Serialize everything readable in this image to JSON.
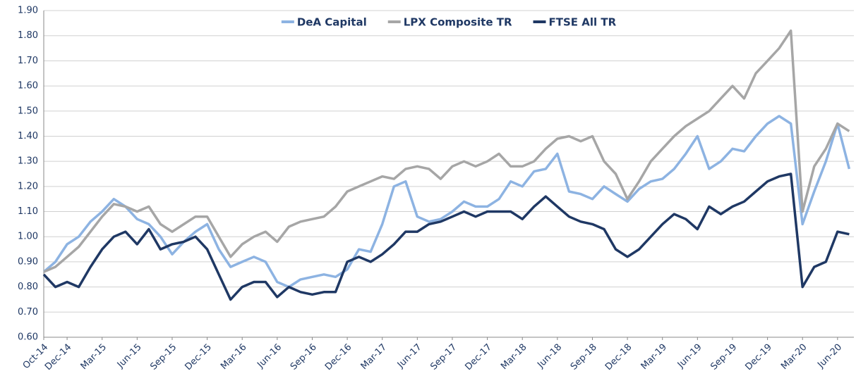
{
  "chart_data": {
    "type": "line",
    "x": [
      "Oct-14",
      null,
      "Dec-14",
      null,
      null,
      "Mar-15",
      null,
      null,
      "Jun-15",
      null,
      null,
      "Sep-15",
      null,
      null,
      "Dec-15",
      null,
      null,
      "Mar-16",
      null,
      null,
      "Jun-16",
      null,
      null,
      "Sep-16",
      null,
      null,
      "Dec-16",
      null,
      null,
      "Mar-17",
      null,
      null,
      "Jun-17",
      null,
      null,
      "Sep-17",
      null,
      null,
      "Dec-17",
      null,
      null,
      "Mar-18",
      null,
      null,
      "Jun-18",
      null,
      null,
      "Sep-18",
      null,
      null,
      "Dec-18",
      null,
      null,
      "Mar-19",
      null,
      null,
      "Jun-19",
      null,
      null,
      "Sep-19",
      null,
      null,
      "Dec-19",
      null,
      null,
      "Mar-20",
      null,
      null,
      "Jun-20",
      null
    ],
    "series": [
      {
        "name": "DeA Capital",
        "color": "#8db3e2",
        "values": [
          0.86,
          0.9,
          0.97,
          1.0,
          1.06,
          1.1,
          1.15,
          1.12,
          1.07,
          1.05,
          1.0,
          0.93,
          0.98,
          1.02,
          1.05,
          0.95,
          0.88,
          0.9,
          0.92,
          0.9,
          0.82,
          0.8,
          0.83,
          0.84,
          0.85,
          0.84,
          0.87,
          0.95,
          0.94,
          1.05,
          1.2,
          1.22,
          1.08,
          1.06,
          1.07,
          1.1,
          1.14,
          1.12,
          1.12,
          1.15,
          1.22,
          1.2,
          1.26,
          1.27,
          1.33,
          1.18,
          1.17,
          1.15,
          1.2,
          1.17,
          1.14,
          1.19,
          1.22,
          1.23,
          1.27,
          1.33,
          1.4,
          1.27,
          1.3,
          1.35,
          1.34,
          1.4,
          1.45,
          1.48,
          1.45,
          1.05,
          1.18,
          1.3,
          1.45,
          1.27
        ]
      },
      {
        "name": "LPX Composite TR",
        "color": "#a6a6a6",
        "values": [
          0.86,
          0.88,
          0.92,
          0.96,
          1.02,
          1.08,
          1.13,
          1.12,
          1.1,
          1.12,
          1.05,
          1.02,
          1.05,
          1.08,
          1.08,
          1.0,
          0.92,
          0.97,
          1.0,
          1.02,
          0.98,
          1.04,
          1.06,
          1.07,
          1.08,
          1.12,
          1.18,
          1.2,
          1.22,
          1.24,
          1.23,
          1.27,
          1.28,
          1.27,
          1.23,
          1.28,
          1.3,
          1.28,
          1.3,
          1.33,
          1.28,
          1.28,
          1.3,
          1.35,
          1.39,
          1.4,
          1.38,
          1.4,
          1.3,
          1.25,
          1.15,
          1.22,
          1.3,
          1.35,
          1.4,
          1.44,
          1.47,
          1.5,
          1.55,
          1.6,
          1.55,
          1.65,
          1.7,
          1.75,
          1.82,
          1.1,
          1.28,
          1.35,
          1.45,
          1.42
        ]
      },
      {
        "name": "FTSE All TR",
        "color": "#1f3864",
        "values": [
          0.85,
          0.8,
          0.82,
          0.8,
          0.88,
          0.95,
          1.0,
          1.02,
          0.97,
          1.03,
          0.95,
          0.97,
          0.98,
          1.0,
          0.95,
          0.85,
          0.75,
          0.8,
          0.82,
          0.82,
          0.76,
          0.8,
          0.78,
          0.77,
          0.78,
          0.78,
          0.9,
          0.92,
          0.9,
          0.93,
          0.97,
          1.02,
          1.02,
          1.05,
          1.06,
          1.08,
          1.1,
          1.08,
          1.1,
          1.1,
          1.1,
          1.07,
          1.12,
          1.16,
          1.12,
          1.08,
          1.06,
          1.05,
          1.03,
          0.95,
          0.92,
          0.95,
          1.0,
          1.05,
          1.09,
          1.07,
          1.03,
          1.12,
          1.09,
          1.12,
          1.14,
          1.18,
          1.22,
          1.24,
          1.25,
          0.8,
          0.88,
          0.9,
          1.02,
          1.01
        ]
      }
    ],
    "ylim": [
      0.6,
      1.9
    ],
    "yticks": [
      {
        "value": 0.6,
        "label": "0.60"
      },
      {
        "value": 0.7,
        "label": "0.70"
      },
      {
        "value": 0.8,
        "label": "0.80"
      },
      {
        "value": 0.9,
        "label": "0.90"
      },
      {
        "value": 1.0,
        "label": "1.00"
      },
      {
        "value": 1.1,
        "label": "1.10"
      },
      {
        "value": 1.2,
        "label": "1.20"
      },
      {
        "value": 1.3,
        "label": "1.30"
      },
      {
        "value": 1.4,
        "label": "1.40"
      },
      {
        "value": 1.5,
        "label": "1.50"
      },
      {
        "value": 1.6,
        "label": "1.60"
      },
      {
        "value": 1.7,
        "label": "1.70"
      },
      {
        "value": 1.8,
        "label": "1.80"
      },
      {
        "value": 1.9,
        "label": "1.90"
      }
    ],
    "grid": true,
    "legend": "top"
  }
}
